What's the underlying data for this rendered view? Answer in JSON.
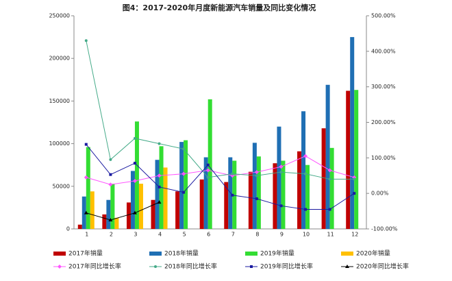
{
  "chart_data": {
    "type": "bar",
    "title": "图4：2017-2020年月度新能源汽车销量及同比变化情况",
    "categories": [
      "1",
      "2",
      "3",
      "4",
      "5",
      "6",
      "7",
      "8",
      "9",
      "10",
      "11",
      "12"
    ],
    "series": [
      {
        "name": "2017年销量",
        "color": "#c00000",
        "values": [
          5000,
          17000,
          31000,
          34000,
          44000,
          58000,
          55000,
          67000,
          77000,
          91000,
          118000,
          162000
        ]
      },
      {
        "name": "2018年销量",
        "color": "#1f6fb4",
        "values": [
          38000,
          34000,
          68000,
          81000,
          102000,
          84000,
          84000,
          101000,
          120000,
          138000,
          169000,
          225000
        ]
      },
      {
        "name": "2019年销量",
        "color": "#33dd33",
        "values": [
          96000,
          53000,
          126000,
          97000,
          104000,
          152000,
          80000,
          85000,
          80000,
          75000,
          95000,
          163000
        ]
      },
      {
        "name": "2020年销量",
        "color": "#ffc000",
        "values": [
          44000,
          13000,
          53000,
          72000,
          null,
          null,
          null,
          null,
          null,
          null,
          null,
          null
        ]
      },
      {
        "name": "2017年同比增长率",
        "color": "#ff55ff",
        "type": "line",
        "marker": "diamond",
        "axis": "y2",
        "values": [
          45,
          25,
          35,
          50,
          55,
          65,
          50,
          60,
          75,
          105,
          65,
          45
        ]
      },
      {
        "name": "2018年同比增长率",
        "color": "#44aa88",
        "type": "line",
        "marker": "circle",
        "axis": "y2",
        "values": [
          430,
          95,
          155,
          140,
          125,
          45,
          55,
          50,
          60,
          55,
          40,
          40
        ]
      },
      {
        "name": "2019年同比增长率",
        "color": "#1a1aa0",
        "type": "line",
        "marker": "square",
        "axis": "y2",
        "values": [
          138,
          53,
          85,
          18,
          3,
          80,
          -5,
          -15,
          -35,
          -45,
          -45,
          0
        ]
      },
      {
        "name": "2020年同比增长率",
        "color": "#000000",
        "type": "line",
        "marker": "triangle",
        "axis": "y2",
        "values": [
          -55,
          -75,
          -55,
          -25,
          null,
          null,
          null,
          null,
          null,
          null,
          null,
          null
        ]
      }
    ],
    "ylim": [
      0,
      250000
    ],
    "yticks": [
      0,
      50000,
      100000,
      150000,
      200000,
      250000
    ],
    "y2lim": [
      -100,
      500
    ],
    "y2ticks": [
      {
        "value": -100,
        "label": "-100.00%"
      },
      {
        "value": 0,
        "label": "0.00%"
      },
      {
        "value": 100,
        "label": "100.00%"
      },
      {
        "value": 200,
        "label": "200.00%"
      },
      {
        "value": 300,
        "label": "300.00%"
      },
      {
        "value": 400,
        "label": "400.00%"
      },
      {
        "value": 500,
        "label": "500.00%"
      }
    ],
    "legend": "bottom"
  }
}
